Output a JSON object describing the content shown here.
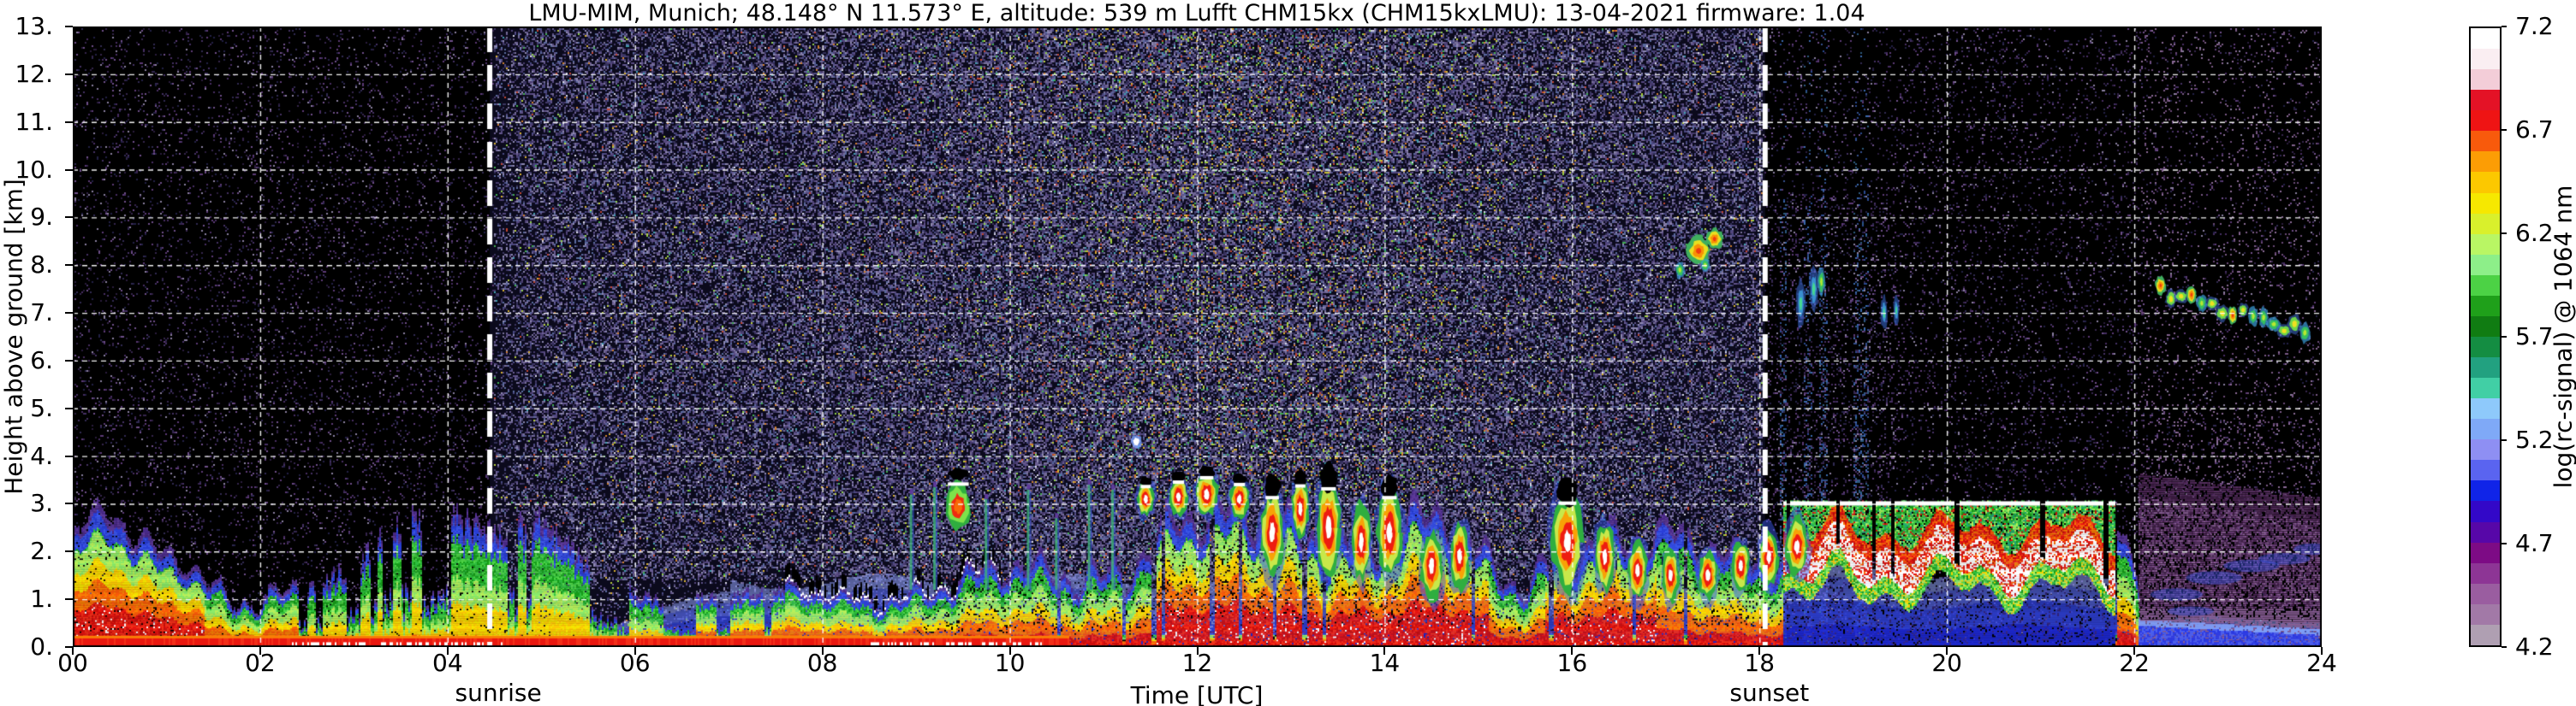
{
  "title": "LMU-MIM, Munich; 48.148° N 11.573° E, altitude: 539 m    Lufft CHM15kx (CHM15kxLMU): 13-04-2021    firmware: 1.04",
  "axes": {
    "x_label": "Time [UTC]",
    "y_label": "Height above ground [km]",
    "x_ticks": [
      {
        "label": "00",
        "hour": 0
      },
      {
        "label": "02",
        "hour": 2
      },
      {
        "label": "04",
        "hour": 4
      },
      {
        "label": "06",
        "hour": 6
      },
      {
        "label": "08",
        "hour": 8
      },
      {
        "label": "10",
        "hour": 10
      },
      {
        "label": "12",
        "hour": 12
      },
      {
        "label": "14",
        "hour": 14
      },
      {
        "label": "16",
        "hour": 16
      },
      {
        "label": "18",
        "hour": 18
      },
      {
        "label": "20",
        "hour": 20
      },
      {
        "label": "22",
        "hour": 22
      },
      {
        "label": "24",
        "hour": 24
      }
    ],
    "y_ticks": [
      {
        "label": "0.",
        "km": 0
      },
      {
        "label": "1.",
        "km": 1
      },
      {
        "label": "2.",
        "km": 2
      },
      {
        "label": "3.",
        "km": 3
      },
      {
        "label": "4.",
        "km": 4
      },
      {
        "label": "5.",
        "km": 5
      },
      {
        "label": "6.",
        "km": 6
      },
      {
        "label": "7.",
        "km": 7
      },
      {
        "label": "8.",
        "km": 8
      },
      {
        "label": "9.",
        "km": 9
      },
      {
        "label": "10.",
        "km": 10
      },
      {
        "label": "11.",
        "km": 11
      },
      {
        "label": "12.",
        "km": 12
      },
      {
        "label": "13.",
        "km": 13
      }
    ]
  },
  "annotations": {
    "sunrise_label": "sunrise",
    "sunset_label": "sunset"
  },
  "colorbar": {
    "label": "log(rc-signal) @ 1064 nm",
    "ticks": [
      {
        "label": "7.2",
        "v": 7.2
      },
      {
        "label": "6.7",
        "v": 6.7
      },
      {
        "label": "6.2",
        "v": 6.2
      },
      {
        "label": "5.7",
        "v": 5.7
      },
      {
        "label": "5.2",
        "v": 5.2
      },
      {
        "label": "4.7",
        "v": 4.7
      },
      {
        "label": "4.2",
        "v": 4.2
      }
    ],
    "stops_bottom_to_top": [
      "#af9fb2",
      "#a279a7",
      "#9a5da0",
      "#8d3595",
      "#7d0b85",
      "#5707a8",
      "#3308c8",
      "#1024e8",
      "#5a64f0",
      "#8e8ff3",
      "#7fa9f7",
      "#8ec9fb",
      "#41cfa5",
      "#22a180",
      "#148d42",
      "#107c12",
      "#1fa01a",
      "#4cd245",
      "#8def89",
      "#b9f664",
      "#d9f02c",
      "#f6e800",
      "#fcc800",
      "#fc9d05",
      "#f85a0c",
      "#ef1414",
      "#e41226",
      "#f3cdd8",
      "#faeef2",
      "#ffffff"
    ]
  },
  "chart_data": {
    "type": "heatmap",
    "title": "LMU-MIM ceilometer attenuated backscatter quicklook, Munich, 13-04-2021",
    "x_range_hours": [
      0,
      24
    ],
    "y_range_km": [
      0,
      13
    ],
    "value_range_log_rc_signal": [
      4.2,
      7.2
    ],
    "grid": {
      "x_step_hours": 2,
      "y_step_km": 1,
      "style": "white dashed over data"
    },
    "sun_lines": {
      "sunrise_utc": 4.45,
      "sunset_utc": 18.06,
      "style": "thick white dashed vertical lines, full height"
    },
    "background": {
      "night_speckle_density": 0.085,
      "day_speckle_density_base": 0.42,
      "day_speckle_density_noon_boost": 0.2,
      "night_palette": [
        "#35244c",
        "#472c62",
        "#2a1c3c",
        "#5b3a76",
        "#6e4f8a",
        "#222046",
        "#453063",
        "#8a7f9f",
        "#312a52"
      ],
      "day_palette": [
        "#53467c",
        "#5e5188",
        "#463a6c",
        "#6b5f94",
        "#4a4a84",
        "#777099",
        "#3a3560",
        "#8d88b2",
        "#322e58",
        "#5a6a9e"
      ],
      "day_accent_palette": [
        "#3fae4e",
        "#b6cf3a",
        "#d8b12f",
        "#c2452f",
        "#3f9fae",
        "#d07f2e",
        "#8fd04a",
        "#d8d8e8"
      ],
      "twilight_streak_palette": [
        "#2a4a90",
        "#3a6aae",
        "#2d5a7e",
        "#35508f"
      ],
      "fog_speck_palette": [
        "#7a5a86",
        "#8a6a96",
        "#6a4a76"
      ]
    },
    "boundary_layer_top_km": [
      [
        0.0,
        2.0,
        0.5,
        1.0
      ],
      [
        0.4,
        2.5,
        0.5,
        1.0
      ],
      [
        0.8,
        2.0,
        0.6,
        1.0
      ],
      [
        1.2,
        2.2,
        0.5,
        0.95
      ],
      [
        1.6,
        1.2,
        0.5,
        0.85
      ],
      [
        2.0,
        0.95,
        0.4,
        0.8
      ],
      [
        2.5,
        1.05,
        0.6,
        0.6
      ],
      [
        3.0,
        1.5,
        0.7,
        0.55
      ],
      [
        3.5,
        2.3,
        0.5,
        0.5
      ],
      [
        4.0,
        2.4,
        0.5,
        0.5
      ],
      [
        4.5,
        2.1,
        0.6,
        0.5
      ],
      [
        5.0,
        2.3,
        0.5,
        0.5
      ],
      [
        5.4,
        1.6,
        0.5,
        0.5
      ],
      [
        5.8,
        1.1,
        0.3,
        0.55
      ],
      [
        6.3,
        0.8,
        0.2,
        0.6
      ],
      [
        7.0,
        0.9,
        0.25,
        0.7
      ],
      [
        7.6,
        1.05,
        0.3,
        0.75
      ],
      [
        8.2,
        1.1,
        0.3,
        0.75
      ],
      [
        8.8,
        1.2,
        0.35,
        0.75
      ],
      [
        9.4,
        1.3,
        0.5,
        0.75
      ],
      [
        10.0,
        1.45,
        0.5,
        0.75
      ],
      [
        10.6,
        1.55,
        0.6,
        0.78
      ],
      [
        11.2,
        1.9,
        0.7,
        0.85
      ],
      [
        11.7,
        2.6,
        0.7,
        0.92
      ],
      [
        12.2,
        2.4,
        0.8,
        0.92
      ],
      [
        12.8,
        2.5,
        0.9,
        0.95
      ],
      [
        13.4,
        2.6,
        0.9,
        0.95
      ],
      [
        14.0,
        2.5,
        0.9,
        0.92
      ],
      [
        14.6,
        2.4,
        0.8,
        0.95
      ],
      [
        15.1,
        1.6,
        0.6,
        0.9
      ],
      [
        15.5,
        1.3,
        0.5,
        0.85
      ],
      [
        15.9,
        2.6,
        0.8,
        0.95
      ],
      [
        16.4,
        2.3,
        0.8,
        0.92
      ],
      [
        16.9,
        2.1,
        0.7,
        0.9
      ],
      [
        17.4,
        1.9,
        0.6,
        0.88
      ],
      [
        17.9,
        1.9,
        0.5,
        0.85
      ],
      [
        18.2,
        2.1,
        0.5,
        0.9
      ],
      [
        21.9,
        2.0,
        0.5,
        0.7
      ],
      [
        22.1,
        0.6,
        0.2,
        0.4
      ],
      [
        23.0,
        0.5,
        0.15,
        0.3
      ],
      [
        24.0,
        0.5,
        0.15,
        0.3
      ]
    ],
    "needle_plumes": {
      "hours": [
        2.4,
        7.6
      ]
    },
    "crest_band": {
      "hours": [
        7.0,
        9.9
      ]
    },
    "cloud_deck": {
      "hours": [
        18.25,
        21.78
      ],
      "cap_km": 3.0,
      "core_km": [
        1.4,
        2.1
      ],
      "down_needles_hours": [
        19.7,
        20.9,
        21.35
      ]
    },
    "red_ground_strip": {
      "hours": [
        0,
        10.62
      ],
      "top_km": 0.2,
      "white_patch_hours": [
        [
          2.3,
          4.6
        ],
        [
          8.5,
          10.45
        ]
      ]
    },
    "haze_band": {
      "note": "blue near-ground haze",
      "segments": [
        [
          5.8,
          7.0,
          0.9
        ],
        [
          7.0,
          12.5,
          1.35
        ],
        [
          12.5,
          18.05,
          1.2
        ],
        [
          18.05,
          21.8,
          1.6
        ],
        [
          21.8,
          24,
          0.55
        ]
      ]
    },
    "fog_region": {
      "hours": [
        22.05,
        24
      ],
      "top_km_start": 3.62,
      "top_km_end": 3.1,
      "palette": [
        "#6a3d78",
        "#55305e",
        "#7a4a86",
        "#4a2452",
        "#8a5f96"
      ]
    },
    "blue_wisps": [
      [
        22.45,
        1.1,
        0.28,
        0.13
      ],
      [
        22.85,
        1.45,
        0.3,
        0.14
      ],
      [
        23.25,
        1.7,
        0.3,
        0.13
      ],
      [
        23.6,
        1.85,
        0.28,
        0.12
      ],
      [
        23.9,
        2.05,
        0.2,
        0.12
      ],
      [
        22.6,
        0.75,
        0.25,
        0.1
      ]
    ],
    "thin_columns": [
      [
        8.95,
        3.2
      ],
      [
        9.2,
        3.35
      ],
      [
        9.75,
        3.1
      ],
      [
        10.2,
        3.3
      ],
      [
        10.5,
        2.7
      ],
      [
        10.85,
        3.4
      ],
      [
        11.1,
        3.3
      ]
    ],
    "clouds": [
      [
        9.45,
        2.95,
        0.14,
        0.5,
        "patch"
      ],
      [
        11.35,
        4.3,
        0.06,
        0.14,
        "white"
      ],
      [
        11.45,
        3.1,
        0.09,
        0.35,
        "anvil"
      ],
      [
        11.8,
        3.15,
        0.1,
        0.4,
        "anvil"
      ],
      [
        12.1,
        3.2,
        0.12,
        0.45,
        "anvil"
      ],
      [
        12.45,
        3.1,
        0.1,
        0.4,
        "anvil"
      ],
      [
        12.8,
        2.4,
        0.12,
        0.9,
        "anvil"
      ],
      [
        13.1,
        2.9,
        0.09,
        0.6,
        "anvil"
      ],
      [
        13.4,
        2.5,
        0.13,
        1.0,
        "anvil"
      ],
      [
        13.75,
        2.2,
        0.1,
        0.8,
        "default"
      ],
      [
        14.05,
        2.4,
        0.13,
        0.9,
        "anvil"
      ],
      [
        14.5,
        1.7,
        0.12,
        0.7,
        "default"
      ],
      [
        14.8,
        1.9,
        0.1,
        0.7,
        "default"
      ],
      [
        15.95,
        2.2,
        0.16,
        1.0,
        "anvil"
      ],
      [
        16.35,
        1.9,
        0.1,
        0.7,
        "default"
      ],
      [
        16.7,
        1.6,
        0.1,
        0.6,
        "default"
      ],
      [
        17.05,
        1.5,
        0.09,
        0.55,
        "default"
      ],
      [
        17.45,
        1.5,
        0.1,
        0.5,
        "default"
      ],
      [
        17.8,
        1.7,
        0.09,
        0.5,
        "default"
      ],
      [
        18.1,
        1.9,
        0.1,
        0.6,
        "default"
      ],
      [
        18.4,
        2.1,
        0.12,
        0.6,
        "default"
      ],
      [
        17.35,
        8.3,
        0.13,
        0.3,
        "orange"
      ],
      [
        17.52,
        8.55,
        0.09,
        0.22,
        "orange"
      ],
      [
        17.15,
        7.9,
        0.05,
        0.18,
        "green"
      ],
      [
        17.42,
        8.0,
        0.05,
        0.15,
        "green"
      ],
      [
        18.44,
        7.2,
        0.05,
        0.5,
        "cyan"
      ],
      [
        18.58,
        7.5,
        0.05,
        0.45,
        "cyan"
      ],
      [
        18.66,
        7.65,
        0.04,
        0.3,
        "green"
      ],
      [
        19.33,
        7.0,
        0.035,
        0.35,
        "cyan"
      ],
      [
        19.46,
        7.05,
        0.03,
        0.3,
        "cyan"
      ]
    ],
    "cirrus_band": {
      "hours": [
        22.28,
        23.82
      ],
      "km_start": 7.45,
      "km_end": 6.6,
      "blob_count": 15
    },
    "twilight_streaks": {
      "hours": [
        18.06,
        19.45
      ],
      "max_km": 9.5
    }
  }
}
